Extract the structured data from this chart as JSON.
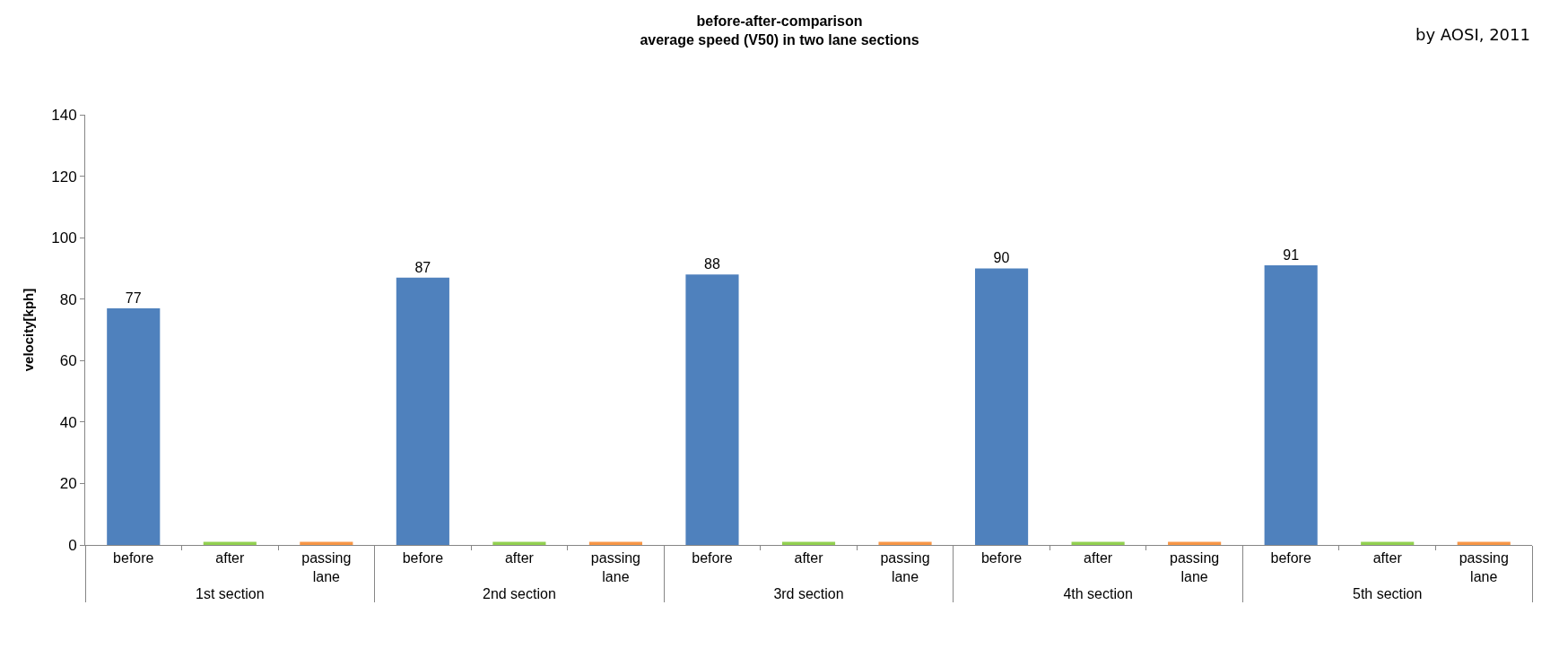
{
  "chart_data": {
    "type": "bar",
    "title": "before-after-comparison\naverage speed (V50) in two lane sections",
    "ylabel": "velocity[kph]",
    "categories": [
      "1st section",
      "2nd section",
      "3rd section",
      "4th section",
      "5th section"
    ],
    "series": [
      {
        "name": "before",
        "color": "#4f81bd",
        "values": [
          77,
          87,
          88,
          90,
          91
        ],
        "value_labels": [
          "77",
          "87",
          "88",
          "90",
          "91"
        ]
      },
      {
        "name": "after",
        "color": "#92d050",
        "values": [
          1,
          1,
          1,
          1,
          1
        ]
      },
      {
        "name": "passing lane",
        "color": "#f79646",
        "values": [
          1,
          1,
          1,
          1,
          1
        ]
      }
    ],
    "ylim": [
      0,
      140
    ],
    "yticks": [
      0,
      20,
      40,
      60,
      80,
      100,
      120,
      140
    ],
    "annotations": [
      "by AOSI, 2011"
    ]
  }
}
